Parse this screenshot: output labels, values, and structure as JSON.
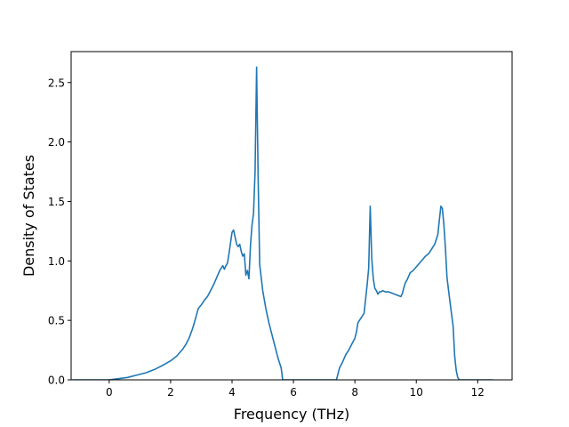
{
  "chart_data": {
    "type": "line",
    "title": "",
    "xlabel": "Frequency (THz)",
    "ylabel": "Density of States",
    "xlim": [
      -1.24,
      13.12
    ],
    "ylim": [
      0,
      2.76
    ],
    "xticks": [
      0,
      2,
      4,
      6,
      8,
      10,
      12
    ],
    "yticks": [
      0.0,
      0.5,
      1.0,
      1.5,
      2.0,
      2.5
    ],
    "xtick_labels": [
      "0",
      "2",
      "4",
      "6",
      "8",
      "10",
      "12"
    ],
    "ytick_labels": [
      "0.0",
      "0.5",
      "1.0",
      "1.5",
      "2.0",
      "2.5"
    ],
    "grid": false,
    "legend": false,
    "colors": {
      "line": "#1f77b4",
      "axes": "#000000",
      "background": "#ffffff"
    },
    "series": [
      {
        "x": [
          -1.2,
          -0.5,
          0.0,
          0.3,
          0.6,
          0.9,
          1.2,
          1.5,
          1.8,
          2.0,
          2.2,
          2.4,
          2.5,
          2.6,
          2.7,
          2.75,
          2.9,
          3.0,
          3.1,
          3.2,
          3.3,
          3.4,
          3.5,
          3.6,
          3.7,
          3.75,
          3.8,
          3.85,
          3.9,
          3.95,
          4.0,
          4.05,
          4.1,
          4.15,
          4.2,
          4.25,
          4.3,
          4.35,
          4.4,
          4.45,
          4.5,
          4.55,
          4.6,
          4.65,
          4.7,
          4.75,
          4.8,
          4.85,
          4.9,
          5.0,
          5.1,
          5.2,
          5.3,
          5.4,
          5.5,
          5.6,
          5.65,
          5.7,
          6.0,
          6.5,
          7.0,
          7.4,
          7.5,
          7.6,
          7.7,
          7.8,
          7.9,
          8.0,
          8.05,
          8.1,
          8.2,
          8.3,
          8.4,
          8.45,
          8.5,
          8.55,
          8.6,
          8.65,
          8.7,
          8.75,
          8.8,
          8.85,
          8.9,
          9.0,
          9.1,
          9.2,
          9.3,
          9.4,
          9.5,
          9.55,
          9.6,
          9.65,
          9.7,
          9.75,
          9.8,
          9.85,
          9.9,
          10.0,
          10.1,
          10.2,
          10.3,
          10.4,
          10.5,
          10.6,
          10.65,
          10.7,
          10.8,
          10.85,
          10.9,
          10.95,
          11.0,
          11.1,
          11.2,
          11.25,
          11.3,
          11.35,
          11.4,
          11.5,
          12.0,
          12.5
        ],
        "y": [
          0.0,
          0.0,
          0.0,
          0.01,
          0.02,
          0.04,
          0.06,
          0.09,
          0.13,
          0.16,
          0.2,
          0.26,
          0.3,
          0.35,
          0.42,
          0.46,
          0.6,
          0.63,
          0.67,
          0.7,
          0.75,
          0.8,
          0.86,
          0.92,
          0.96,
          0.93,
          0.96,
          0.98,
          1.06,
          1.15,
          1.24,
          1.26,
          1.2,
          1.14,
          1.12,
          1.14,
          1.08,
          1.04,
          1.06,
          0.88,
          0.92,
          0.85,
          1.13,
          1.3,
          1.4,
          1.75,
          2.63,
          1.7,
          0.97,
          0.75,
          0.6,
          0.48,
          0.38,
          0.28,
          0.18,
          0.1,
          0.0,
          0.0,
          0.0,
          0.0,
          0.0,
          0.0,
          0.1,
          0.15,
          0.21,
          0.25,
          0.3,
          0.35,
          0.4,
          0.48,
          0.52,
          0.56,
          0.8,
          0.94,
          1.46,
          1.02,
          0.85,
          0.77,
          0.75,
          0.72,
          0.74,
          0.74,
          0.75,
          0.74,
          0.74,
          0.73,
          0.72,
          0.71,
          0.7,
          0.73,
          0.78,
          0.82,
          0.84,
          0.87,
          0.9,
          0.91,
          0.92,
          0.95,
          0.98,
          1.01,
          1.04,
          1.06,
          1.1,
          1.14,
          1.18,
          1.22,
          1.46,
          1.44,
          1.3,
          1.1,
          0.86,
          0.65,
          0.45,
          0.2,
          0.08,
          0.02,
          0.0,
          0.0,
          0.0,
          0.0
        ]
      }
    ]
  }
}
